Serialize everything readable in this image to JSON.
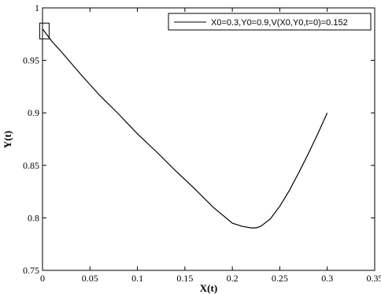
{
  "chart_data": {
    "type": "line",
    "title": "",
    "xlabel": "X(t)",
    "ylabel": "Y(t)",
    "xlim": [
      0,
      0.35
    ],
    "ylim": [
      0.75,
      1.0
    ],
    "x_ticks": [
      "0",
      "0.05",
      "0.1",
      "0.15",
      "0.2",
      "0.25",
      "0.3",
      "0.35"
    ],
    "y_ticks": [
      "0.75",
      "0.8",
      "0.85",
      "0.9",
      "0.95",
      "1"
    ],
    "grid": false,
    "legend_position": "top-right",
    "series": [
      {
        "name": "X0=0.3,Y0=0.9,V(X0,Y0,t=0)=0.152",
        "color": "#000000",
        "x": [
          0.0,
          0.005,
          0.01,
          0.02,
          0.04,
          0.06,
          0.08,
          0.1,
          0.12,
          0.14,
          0.16,
          0.18,
          0.2,
          0.21,
          0.22,
          0.225,
          0.23,
          0.24,
          0.25,
          0.26,
          0.27,
          0.28,
          0.29,
          0.3
        ],
        "y": [
          0.98,
          0.974,
          0.968,
          0.958,
          0.937,
          0.917,
          0.899,
          0.88,
          0.863,
          0.845,
          0.828,
          0.81,
          0.795,
          0.792,
          0.7905,
          0.7905,
          0.792,
          0.799,
          0.811,
          0.826,
          0.843,
          0.861,
          0.88,
          0.9
        ]
      }
    ],
    "annotations": [
      {
        "type": "box",
        "label": "initial point marker",
        "x": 0.002,
        "y": 0.978
      }
    ]
  }
}
